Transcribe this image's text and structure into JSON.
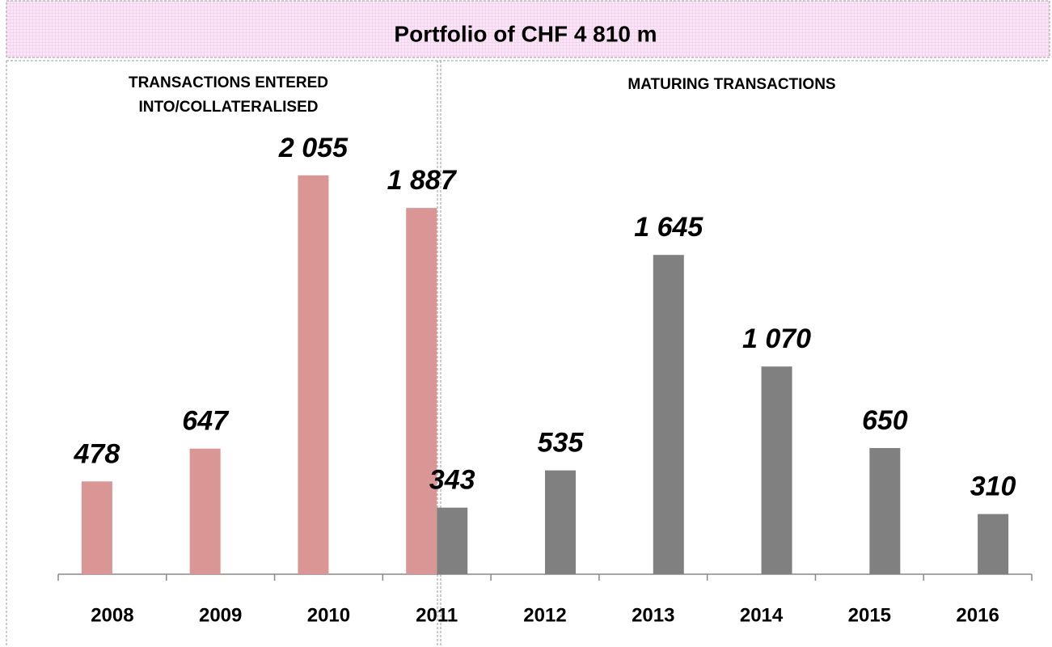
{
  "chart_data": {
    "type": "bar",
    "title": "Portfolio of CHF 4 810 m",
    "categories": [
      "2008",
      "2009",
      "2010",
      "2011",
      "2012",
      "2013",
      "2014",
      "2015",
      "2016"
    ],
    "series": [
      {
        "name": "TRANSACTIONS ENTERED INTO/COLLATERALISED",
        "color": "#d99694",
        "values": [
          478,
          647,
          2055,
          1887,
          null,
          null,
          null,
          null,
          null
        ],
        "value_labels": [
          "478",
          "647",
          "2 055",
          "1 887",
          null,
          null,
          null,
          null,
          null
        ]
      },
      {
        "name": "MATURING TRANSACTIONS",
        "color": "#808080",
        "values": [
          null,
          null,
          null,
          343,
          535,
          1645,
          1070,
          650,
          310
        ],
        "value_labels": [
          null,
          null,
          null,
          "343",
          "535",
          "1 645",
          "1 070",
          "650",
          "310"
        ]
      }
    ],
    "ylim": [
      0,
      2400
    ]
  }
}
